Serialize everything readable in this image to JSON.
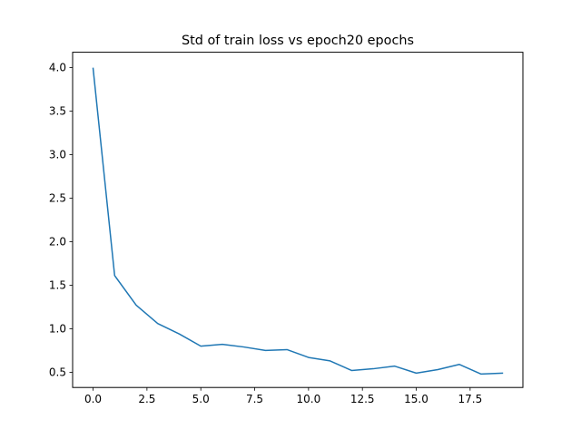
{
  "chart_data": {
    "type": "line",
    "title": "Std of train loss vs epoch20 epochs",
    "xlabel": "",
    "ylabel": "",
    "xlim": [
      -0.95,
      19.95
    ],
    "ylim": [
      0.325,
      4.175
    ],
    "x_ticks": [
      0,
      2.5,
      5,
      7.5,
      10,
      12.5,
      15,
      17.5
    ],
    "x_tick_labels": [
      "0.0",
      "2.5",
      "5.0",
      "7.5",
      "10.0",
      "12.5",
      "15.0",
      "17.5"
    ],
    "y_ticks": [
      0.5,
      1.0,
      1.5,
      2.0,
      2.5,
      3.0,
      3.5,
      4.0
    ],
    "y_tick_labels": [
      "0.5",
      "1.0",
      "1.5",
      "2.0",
      "2.5",
      "3.0",
      "3.5",
      "4.0"
    ],
    "grid": false,
    "legend": "none",
    "series": [
      {
        "color": "#1f77b4",
        "x": [
          0,
          1,
          2,
          3,
          4,
          5,
          6,
          7,
          8,
          9,
          10,
          11,
          12,
          13,
          14,
          15,
          16,
          17,
          18,
          19
        ],
        "y": [
          3.99,
          1.61,
          1.27,
          1.06,
          0.94,
          0.8,
          0.82,
          0.79,
          0.75,
          0.76,
          0.67,
          0.63,
          0.52,
          0.54,
          0.57,
          0.49,
          0.53,
          0.59,
          0.48,
          0.49
        ]
      }
    ]
  }
}
